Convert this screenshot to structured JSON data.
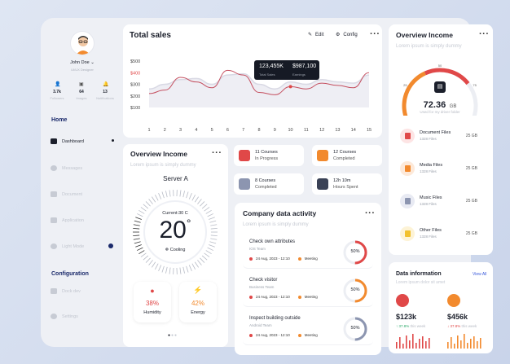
{
  "profile": {
    "name": "John Doe",
    "role": "UI/UX Designer",
    "stats": [
      {
        "value": "3.7k",
        "label": "Followers"
      },
      {
        "value": "64",
        "label": "Images"
      },
      {
        "value": "13",
        "label": "Notifications"
      }
    ]
  },
  "nav": {
    "home_title": "Home",
    "items": [
      "Dashboard",
      "Messages",
      "Document",
      "Application",
      "Light Mode"
    ],
    "config_title": "Configuration",
    "config_items": [
      "Dock dev",
      "Settings"
    ]
  },
  "total_sales": {
    "title": "Total sales",
    "edit_label": "Edit",
    "config_label": "Config",
    "tooltip": {
      "value1": "123,455K",
      "label1": "Total Sales",
      "value2": "$987,100",
      "label2": "Earnings"
    }
  },
  "chart_data": {
    "type": "line",
    "x": [
      1,
      2,
      3,
      4,
      5,
      6,
      7,
      8,
      9,
      10,
      11,
      12,
      13,
      14,
      15
    ],
    "ylim": [
      100,
      500
    ],
    "yticks": [
      "$500",
      "$400",
      "$300",
      "$200",
      "$100"
    ],
    "series": [
      {
        "values": [
          220,
          250,
          360,
          320,
          270,
          420,
          380,
          230,
          210,
          280,
          260,
          310,
          290,
          270,
          400
        ]
      },
      {
        "values": [
          260,
          300,
          340,
          350,
          300,
          380,
          390,
          300,
          260,
          320,
          300,
          340,
          320,
          310,
          380
        ]
      }
    ],
    "colors": [
      "#c55060",
      "#d9d9e4"
    ]
  },
  "overview_left": {
    "title": "Overview Income",
    "subtitle": "Lorem ipsum is simply dummy",
    "server": "Server A",
    "current": "Current:30 C",
    "temp": "20",
    "degree": "°",
    "mode": "Cooling",
    "humidity": {
      "value": "38%",
      "label": "Humidity"
    },
    "energy": {
      "value": "42%",
      "label": "Energy"
    }
  },
  "courses": [
    {
      "line1": "11 Courses",
      "line2": "In Progress",
      "color": "#e04848"
    },
    {
      "line1": "12 Courses",
      "line2": "Completed",
      "color": "#f28a2e"
    },
    {
      "line1": "8 Courses",
      "line2": "Completed",
      "color": "#8c95b0"
    },
    {
      "line1": "12h 10m",
      "line2": "Hours Spent",
      "color": "#3a4256"
    }
  ],
  "activity": {
    "title": "Company data activity",
    "subtitle": "Lorem ipsum is simply dummy",
    "items": [
      {
        "title": "Check own attributes",
        "team": "IOS Team",
        "date": "24 Aug, 2023 - 12:10",
        "tag": "Meeting",
        "pct": "50%",
        "pct_value": 0.5,
        "color": "#e04848"
      },
      {
        "title": "Check visitor",
        "team": "Business Team",
        "date": "24 Aug, 2023 - 12:10",
        "tag": "Meeting",
        "pct": "50%",
        "pct_value": 0.5,
        "color": "#f28a2e"
      },
      {
        "title": "Inspect building outside",
        "team": "Android Team",
        "date": "24 Aug, 2023 - 12:10",
        "tag": "Meeting",
        "pct": "50%",
        "pct_value": 0.5,
        "color": "#8c95b0"
      }
    ]
  },
  "overview_right": {
    "title": "Overview Income",
    "subtitle": "Lorem ipsum is simply dummy",
    "gauge_value": "72.36",
    "gauge_unit": "GB",
    "gauge_caption": "Used for my driver folder",
    "gauge_ticks": [
      "0",
      "25",
      "50",
      "75",
      "100"
    ],
    "gauge_level": 0.72,
    "files": [
      {
        "name": "Document Files",
        "count": "1328 Files",
        "size": "25 GB",
        "color": "#fde4e4",
        "icon_color": "#e04848"
      },
      {
        "name": "Media Files",
        "count": "1328 Files",
        "size": "25 GB",
        "color": "#fde9d9",
        "icon_color": "#f28a2e"
      },
      {
        "name": "Music Files",
        "count": "1328 Files",
        "size": "25 GB",
        "color": "#e8eaf3",
        "icon_color": "#8c95b0"
      },
      {
        "name": "Other Files",
        "count": "1328 Files",
        "size": "25 GB",
        "color": "#fdf3d6",
        "icon_color": "#f2c12e"
      }
    ]
  },
  "data_info": {
    "title": "Data information",
    "subtitle": "Lorem ipsum dolor sit amet",
    "view_all": "View All",
    "left": {
      "value": "$123k",
      "pct": "37.8%",
      "note": "this week",
      "color": "#e04848"
    },
    "right": {
      "value": "$456k",
      "pct": "37.8%",
      "note": "this week",
      "color": "#f28a2e"
    }
  }
}
